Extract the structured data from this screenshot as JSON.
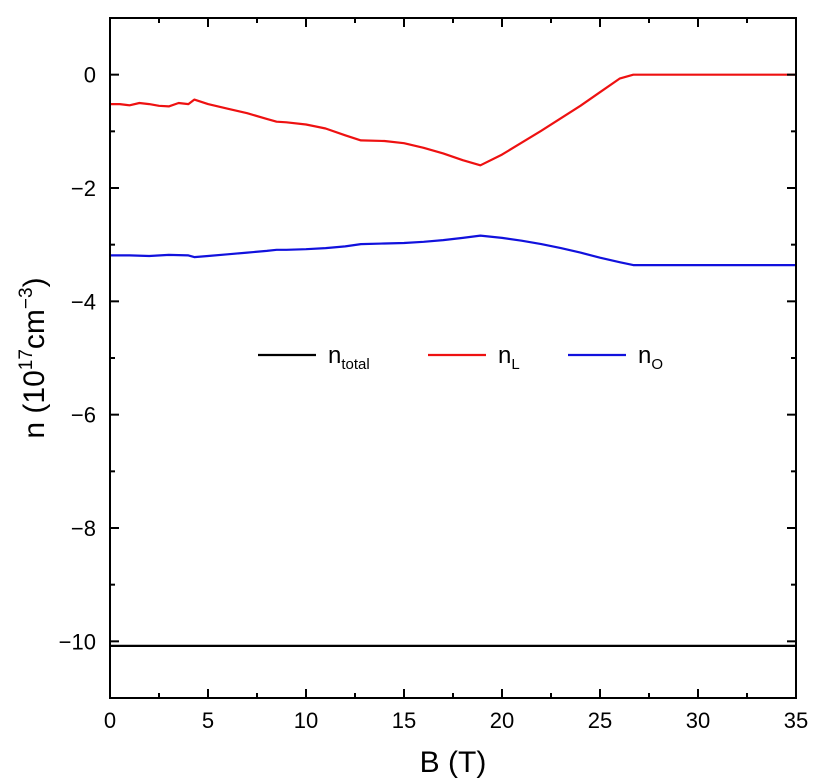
{
  "chart_data": {
    "type": "line",
    "xlabel": "B (T)",
    "ylabel": {
      "prefix": "n (10",
      "sup1": "17",
      "mid": "cm",
      "sup2": "−3",
      "suffix": ")"
    },
    "xlim": [
      0,
      35
    ],
    "ylim": [
      -11,
      1
    ],
    "xticks": [
      0,
      5,
      10,
      15,
      20,
      25,
      30,
      35
    ],
    "xtick_labels": [
      "0",
      "5",
      "10",
      "15",
      "20",
      "25",
      "30",
      "35"
    ],
    "yticks": [
      0,
      -2,
      -4,
      -6,
      -8,
      -10
    ],
    "ytick_labels": [
      "0",
      "−2",
      "−4",
      "−6",
      "−8",
      "−10"
    ],
    "grid": false,
    "legend_position": "center",
    "series": [
      {
        "name": "n total",
        "legend_main": "n",
        "legend_sub": "total",
        "color": "#000000",
        "x": [
          0,
          35
        ],
        "y": [
          -10.08,
          -10.08
        ]
      },
      {
        "name": "n L",
        "legend_main": "n",
        "legend_sub": "L",
        "color": "#ee1111",
        "x": [
          0,
          0.5,
          1,
          1.5,
          2,
          2.5,
          3,
          3.5,
          4,
          4.3,
          5,
          6,
          7,
          8,
          8.5,
          9,
          10,
          11,
          12,
          12.8,
          14,
          15,
          16,
          17,
          18,
          18.9,
          20,
          21,
          22,
          23,
          24,
          25,
          26,
          26.7,
          28,
          30,
          32,
          35
        ],
        "y": [
          -0.52,
          -0.52,
          -0.54,
          -0.5,
          -0.52,
          -0.55,
          -0.56,
          -0.5,
          -0.52,
          -0.44,
          -0.52,
          -0.6,
          -0.68,
          -0.78,
          -0.83,
          -0.84,
          -0.88,
          -0.95,
          -1.07,
          -1.16,
          -1.17,
          -1.21,
          -1.29,
          -1.39,
          -1.51,
          -1.6,
          -1.41,
          -1.2,
          -0.99,
          -0.77,
          -0.55,
          -0.31,
          -0.07,
          0,
          0,
          0,
          0,
          0
        ]
      },
      {
        "name": "n O",
        "legend_main": "n",
        "legend_sub": "O",
        "color": "#1111dd",
        "x": [
          0,
          1,
          2,
          3,
          4,
          4.3,
          5,
          6,
          7,
          8,
          8.5,
          9,
          10,
          11,
          12,
          12.8,
          14,
          15,
          16,
          17,
          18,
          18.9,
          20,
          21,
          22,
          23,
          24,
          25,
          26,
          26.7,
          28,
          30,
          32,
          35
        ],
        "y": [
          -3.19,
          -3.19,
          -3.2,
          -3.18,
          -3.19,
          -3.22,
          -3.2,
          -3.17,
          -3.14,
          -3.11,
          -3.09,
          -3.09,
          -3.08,
          -3.06,
          -3.03,
          -2.99,
          -2.98,
          -2.97,
          -2.95,
          -2.92,
          -2.88,
          -2.84,
          -2.88,
          -2.93,
          -2.99,
          -3.06,
          -3.14,
          -3.23,
          -3.31,
          -3.36,
          -3.36,
          -3.36,
          -3.36,
          -3.36
        ]
      }
    ]
  }
}
